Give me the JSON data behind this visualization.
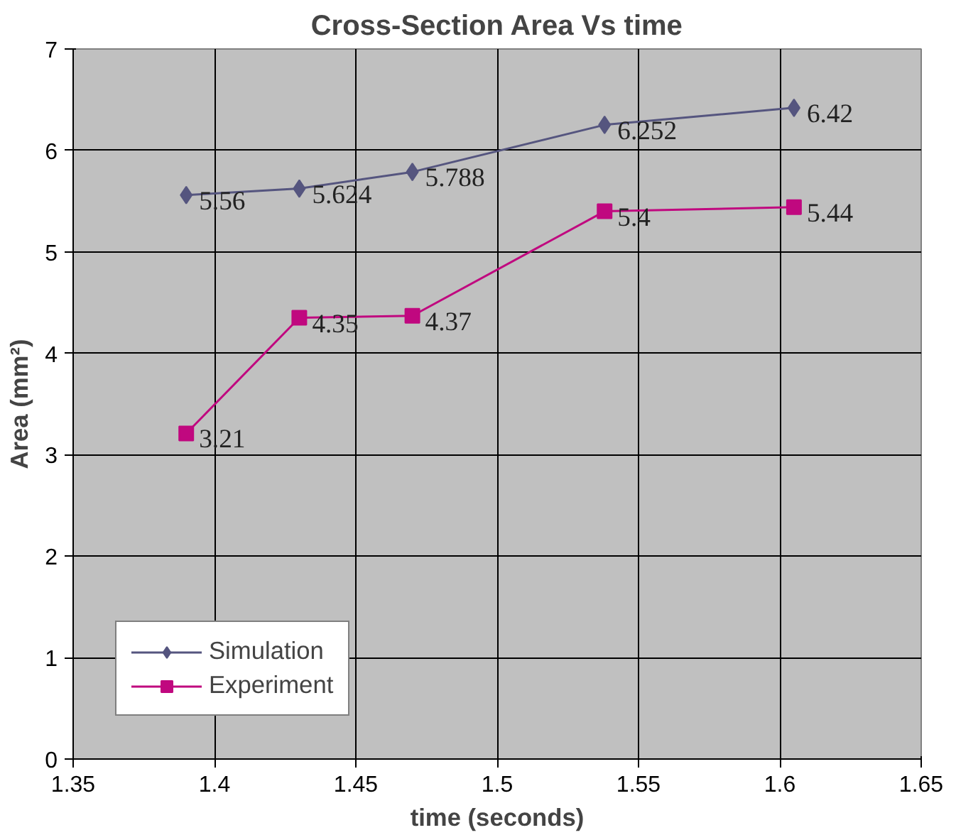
{
  "chart_data": {
    "type": "line",
    "title": "Cross-Section Area Vs time",
    "xlabel": "time (seconds)",
    "ylabel": "Area (mm²)",
    "x": [
      1.39,
      1.43,
      1.47,
      1.538,
      1.605
    ],
    "series": [
      {
        "name": "Simulation",
        "color": "#55557f",
        "marker": "diamond",
        "values": [
          5.56,
          5.624,
          5.788,
          6.252,
          6.42
        ]
      },
      {
        "name": "Experiment",
        "color": "#c0087f",
        "marker": "square",
        "values": [
          3.21,
          4.35,
          4.37,
          5.4,
          5.44
        ]
      }
    ],
    "xlim": [
      1.35,
      1.65
    ],
    "xticks": [
      1.35,
      1.4,
      1.45,
      1.5,
      1.55,
      1.6,
      1.65
    ],
    "ylim": [
      0,
      7
    ],
    "yticks": [
      0,
      1,
      2,
      3,
      4,
      5,
      6,
      7
    ],
    "grid": true,
    "legend": "bottom left",
    "data_labels": true,
    "line_style": "solid"
  }
}
